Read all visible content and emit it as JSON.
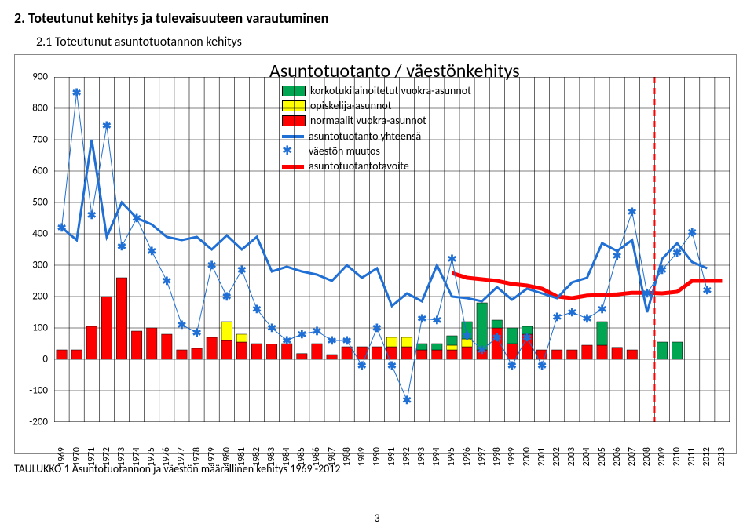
{
  "section_title": "2. Toteutunut kehitys ja tulevaisuuteen varautuminen",
  "sub_title": "2.1    Toteutunut asuntotuotannon kehitys",
  "chart": {
    "title": "Asuntotuotanto / väestönkehitys",
    "ylim": [
      -200,
      900
    ],
    "ytick_step": 100,
    "years": [
      1969,
      1970,
      1971,
      1972,
      1973,
      1974,
      1975,
      1976,
      1977,
      1978,
      1979,
      1980,
      1981,
      1982,
      1983,
      1984,
      1985,
      1986,
      1987,
      1988,
      1989,
      1990,
      1991,
      1992,
      1993,
      1994,
      1995,
      1996,
      1997,
      1998,
      1999,
      2000,
      2001,
      2002,
      2003,
      2004,
      2005,
      2006,
      2007,
      2008,
      2009,
      2010,
      2011,
      2012,
      2013
    ],
    "series": {
      "green": {
        "label": "korkotukilainoitetut vuokra-asunnot",
        "color": "#00a651",
        "data": {
          "1993": 20,
          "1994": 20,
          "1995": 30,
          "1996": 55,
          "1997": 150,
          "1998": 25,
          "1999": 50,
          "2000": 25,
          "2005": 75,
          "2009": 55,
          "2010": 55
        }
      },
      "yellow": {
        "label": "opiskelija-asunnot",
        "color": "#ffff00",
        "data": {
          "1980": 60,
          "1981": 25,
          "1991": 30,
          "1992": 30,
          "1995": 15,
          "1996": 25
        }
      },
      "red": {
        "label": "normaalit vuokra-asunnot",
        "color": "#ff0000",
        "data": {
          "1969": 30,
          "1970": 30,
          "1971": 105,
          "1972": 200,
          "1973": 260,
          "1974": 90,
          "1975": 100,
          "1976": 80,
          "1977": 30,
          "1978": 35,
          "1979": 70,
          "1980": 60,
          "1981": 55,
          "1982": 50,
          "1983": 48,
          "1984": 50,
          "1985": 18,
          "1986": 50,
          "1987": 15,
          "1988": 40,
          "1989": 40,
          "1990": 40,
          "1991": 40,
          "1992": 40,
          "1993": 30,
          "1994": 30,
          "1995": 30,
          "1996": 40,
          "1997": 30,
          "1998": 100,
          "1999": 50,
          "2000": 80,
          "2001": 30,
          "2002": 30,
          "2003": 30,
          "2004": 45,
          "2005": 45,
          "2006": 38,
          "2007": 30
        }
      }
    },
    "yhteensa": {
      "label": "asuntotuotanto yhteensä",
      "color": "#1f6fd4",
      "width": 3,
      "data": {
        "1969": 420,
        "1970": 380,
        "1971": 700,
        "1972": 390,
        "1973": 500,
        "1974": 450,
        "1975": 430,
        "1976": 390,
        "1977": 380,
        "1978": 390,
        "1979": 350,
        "1980": 395,
        "1981": 350,
        "1982": 390,
        "1983": 280,
        "1984": 295,
        "1985": 280,
        "1986": 270,
        "1987": 250,
        "1988": 300,
        "1989": 260,
        "1990": 290,
        "1991": 170,
        "1992": 210,
        "1993": 185,
        "1994": 300,
        "1995": 200,
        "1996": 195,
        "1997": 185,
        "1998": 230,
        "1999": 190,
        "2000": 225,
        "2001": 210,
        "2002": 195,
        "2003": 245,
        "2004": 260,
        "2005": 370,
        "2006": 345,
        "2007": 380,
        "2008": 150,
        "2009": 320,
        "2010": 370,
        "2011": 310,
        "2012": 290
      }
    },
    "muutos": {
      "label": "väestön muutos",
      "color": "#1f6fd4",
      "marker": "*",
      "data": {
        "1969": 420,
        "1970": 850,
        "1971": 460,
        "1972": 745,
        "1973": 360,
        "1974": 450,
        "1975": 345,
        "1976": 250,
        "1977": 110,
        "1978": 85,
        "1979": 300,
        "1980": 200,
        "1981": 285,
        "1982": 160,
        "1983": 100,
        "1984": 60,
        "1985": 80,
        "1986": 90,
        "1987": 60,
        "1988": 60,
        "1989": -20,
        "1990": 100,
        "1991": -20,
        "1992": -130,
        "1993": 130,
        "1994": 125,
        "1995": 320,
        "1996": 75,
        "1997": 30,
        "1998": 70,
        "1999": -20,
        "2000": 70,
        "2001": -20,
        "2002": 135,
        "2003": 150,
        "2004": 130,
        "2005": 160,
        "2006": 330,
        "2007": 470,
        "2008": 210,
        "2009": 285,
        "2010": 340,
        "2011": 405,
        "2012": 220
      }
    },
    "tavoite": {
      "label": "asuntotuotantotavoite",
      "color": "#ff0000",
      "width": 5,
      "data": {
        "1995": 275,
        "1996": 260,
        "1997": 255,
        "1998": 250,
        "1999": 240,
        "2000": 235,
        "2001": 225,
        "2002": 200,
        "2003": 195,
        "2004": 203,
        "2005": 205,
        "2006": 207,
        "2007": 212,
        "2008": 212,
        "2009": 210,
        "2010": 215,
        "2011": 250,
        "2012": 250,
        "2013": 250
      }
    },
    "dashed_year": 2008,
    "grid_color": "#000000",
    "bg": "#ffffff"
  },
  "caption": "TAULUKKO 1   Asuntotuotannon ja väestön määrällinen kehitys 1969 -2012",
  "page_number": "3"
}
